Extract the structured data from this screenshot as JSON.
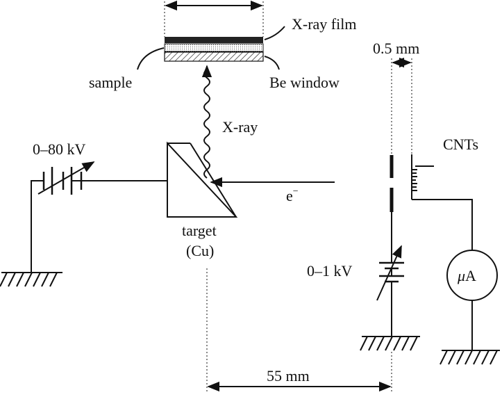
{
  "labels": {
    "xray_film": "X-ray film",
    "sample": "sample",
    "be_window": "Be window",
    "xray": "X-ray",
    "hv_supply": "0–80 kV",
    "target": "target",
    "target_material": "(Cu)",
    "electron": "e",
    "electron_sup": "−",
    "cnts": "CNTs",
    "gap": "0.5 mm",
    "extract_supply": "0–1 kV",
    "ammeter_mu": "μ",
    "ammeter_unit": "A",
    "distance": "55 mm"
  }
}
